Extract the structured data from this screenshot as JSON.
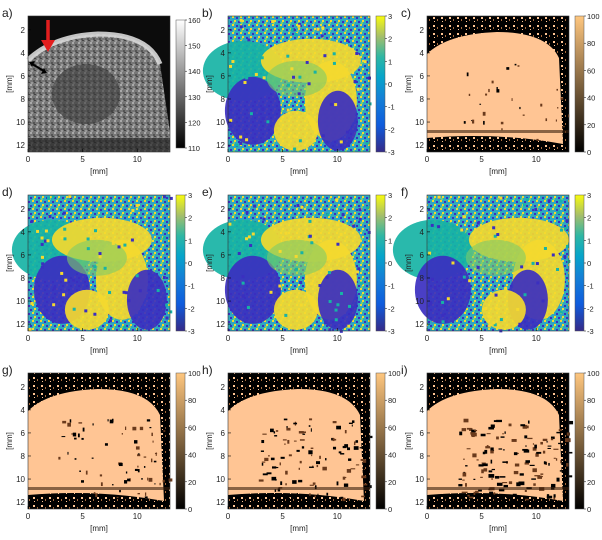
{
  "figure": {
    "x_axis_label": "[mm]",
    "y_axis_label": "[mm]",
    "x_ticks": [
      "0",
      "5",
      "10"
    ],
    "y_ticks": [
      "2",
      "4",
      "6",
      "8",
      "10",
      "12"
    ],
    "panels": [
      {
        "letter": "a)",
        "kind": "bmode",
        "colorbar_ticks": [
          "160",
          "150",
          "140",
          "130",
          "120",
          "110"
        ]
      },
      {
        "letter": "b)",
        "kind": "phase",
        "colorbar_ticks": [
          "3",
          "2",
          "1",
          "0",
          "-1",
          "-2",
          "-3"
        ]
      },
      {
        "letter": "c)",
        "kind": "copper",
        "colorbar_ticks": [
          "100",
          "80",
          "60",
          "40",
          "20",
          "0"
        ]
      },
      {
        "letter": "d)",
        "kind": "phase",
        "colorbar_ticks": [
          "3",
          "2",
          "1",
          "0",
          "-1",
          "-2",
          "-3"
        ]
      },
      {
        "letter": "e)",
        "kind": "phase",
        "colorbar_ticks": [
          "3",
          "2",
          "1",
          "0",
          "-1",
          "-2",
          "-3"
        ]
      },
      {
        "letter": "f)",
        "kind": "phase",
        "colorbar_ticks": [
          "3",
          "2",
          "1",
          "0",
          "-1",
          "-2",
          "-3"
        ]
      },
      {
        "letter": "g)",
        "kind": "copper",
        "colorbar_ticks": [
          "100",
          "80",
          "60",
          "40",
          "20",
          "0"
        ]
      },
      {
        "letter": "h)",
        "kind": "copper",
        "colorbar_ticks": [
          "100",
          "80",
          "60",
          "40",
          "20",
          "0"
        ]
      },
      {
        "letter": "i)",
        "kind": "copper",
        "colorbar_ticks": [
          "100",
          "80",
          "60",
          "40",
          "20",
          "0"
        ]
      }
    ],
    "colors": {
      "bmode_bg": "#0c0c0c",
      "bmode_tissue": "#8a8a8a",
      "phase_low": "#3b2fc0",
      "phase_mid": "#17b3a5",
      "phase_high": "#f4d92f",
      "copper_high": "#ffc594",
      "copper_low": "#000000",
      "arrow_red": "#e31e1e",
      "arrow_black": "#000000"
    }
  }
}
